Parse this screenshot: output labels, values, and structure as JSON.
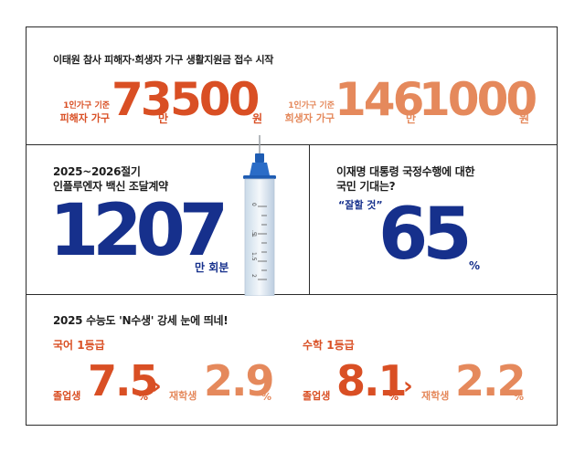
{
  "section1": {
    "title": "이태원 참사 피해자·희생자 가구 생활지원금 접수 시작",
    "victim": {
      "small": "1인가구 기준",
      "label": "피해자 가구",
      "num1": "73",
      "unit1": "만",
      "num2": "500",
      "unit2": "원"
    },
    "deceased": {
      "small": "1인가구 기준",
      "label": "희생자 가구",
      "num1": "146",
      "unit1": "만",
      "num2": "1000",
      "unit2": "원"
    }
  },
  "section2": {
    "title_line1": "2025~2026절기",
    "title_line2": "인플루엔자 백신 조달계약",
    "number": "1207",
    "unit": "만 회분",
    "syringe_marks": [
      "0",
      ".5",
      "1",
      "1.5",
      "2"
    ]
  },
  "section3": {
    "title_line1": "이재명 대통령 국정수행에 대한",
    "title_line2": "국민 기대는?",
    "quote": "“잘할 것”",
    "number": "65",
    "unit": "%"
  },
  "section4": {
    "title": "2025 수능도 'N수생' 강세 눈에 띄네!",
    "korean": {
      "label": "국어 1등급",
      "grad_label": "졸업생",
      "grad_value": "7.5",
      "grad_unit": "%",
      "student_label": "재학생",
      "student_value": "2.9",
      "student_unit": "%"
    },
    "math": {
      "label": "수학 1등급",
      "grad_label": "졸업생",
      "grad_value": "8.1",
      "grad_unit": "%",
      "student_label": "재학생",
      "student_value": "2.2",
      "student_unit": "%"
    }
  },
  "colors": {
    "red": "#d94f24",
    "salmon": "#e5895c",
    "navy": "#16308c",
    "border": "#2b2b2b"
  }
}
